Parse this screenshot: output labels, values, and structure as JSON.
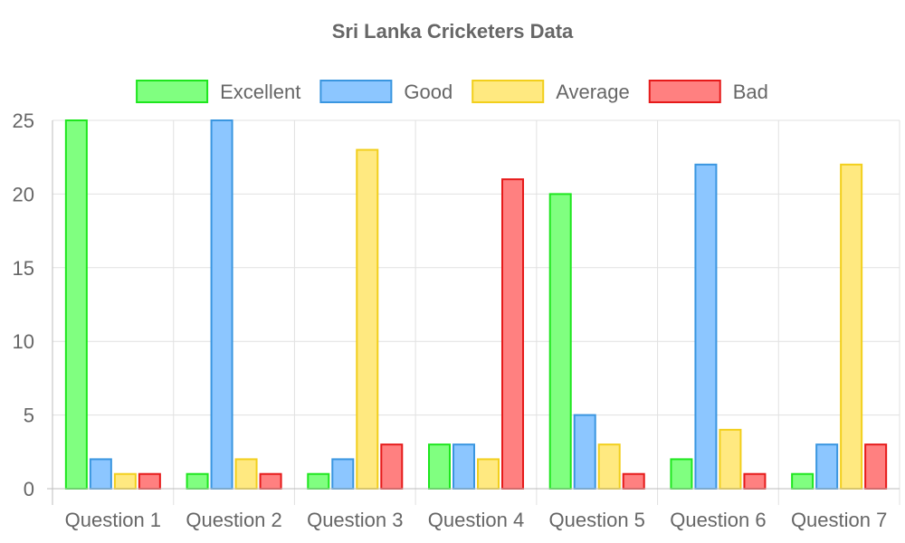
{
  "chart_data": {
    "type": "bar",
    "title": "Sri Lanka Cricketers Data",
    "xlabel": "",
    "ylabel": "",
    "categories": [
      "Question 1",
      "Question 2",
      "Question 3",
      "Question 4",
      "Question 5",
      "Question 6",
      "Question 7"
    ],
    "series": [
      {
        "name": "Excellent",
        "values": [
          25,
          1,
          1,
          3,
          20,
          2,
          1
        ],
        "fill": "#80ff80",
        "stroke": "#1ee61e"
      },
      {
        "name": "Good",
        "values": [
          2,
          25,
          2,
          3,
          5,
          22,
          3
        ],
        "fill": "#8cc6ff",
        "stroke": "#3a96e0"
      },
      {
        "name": "Average",
        "values": [
          1,
          2,
          23,
          2,
          3,
          4,
          22
        ],
        "fill": "#ffe980",
        "stroke": "#f2cf1c"
      },
      {
        "name": "Bad",
        "values": [
          1,
          1,
          3,
          21,
          1,
          1,
          3
        ],
        "fill": "#ff8080",
        "stroke": "#e61a1a"
      }
    ],
    "ylim": [
      0,
      25
    ],
    "yticks": [
      "0",
      "5",
      "10",
      "15",
      "20",
      "25"
    ],
    "grid": true,
    "legend_position": "top"
  }
}
